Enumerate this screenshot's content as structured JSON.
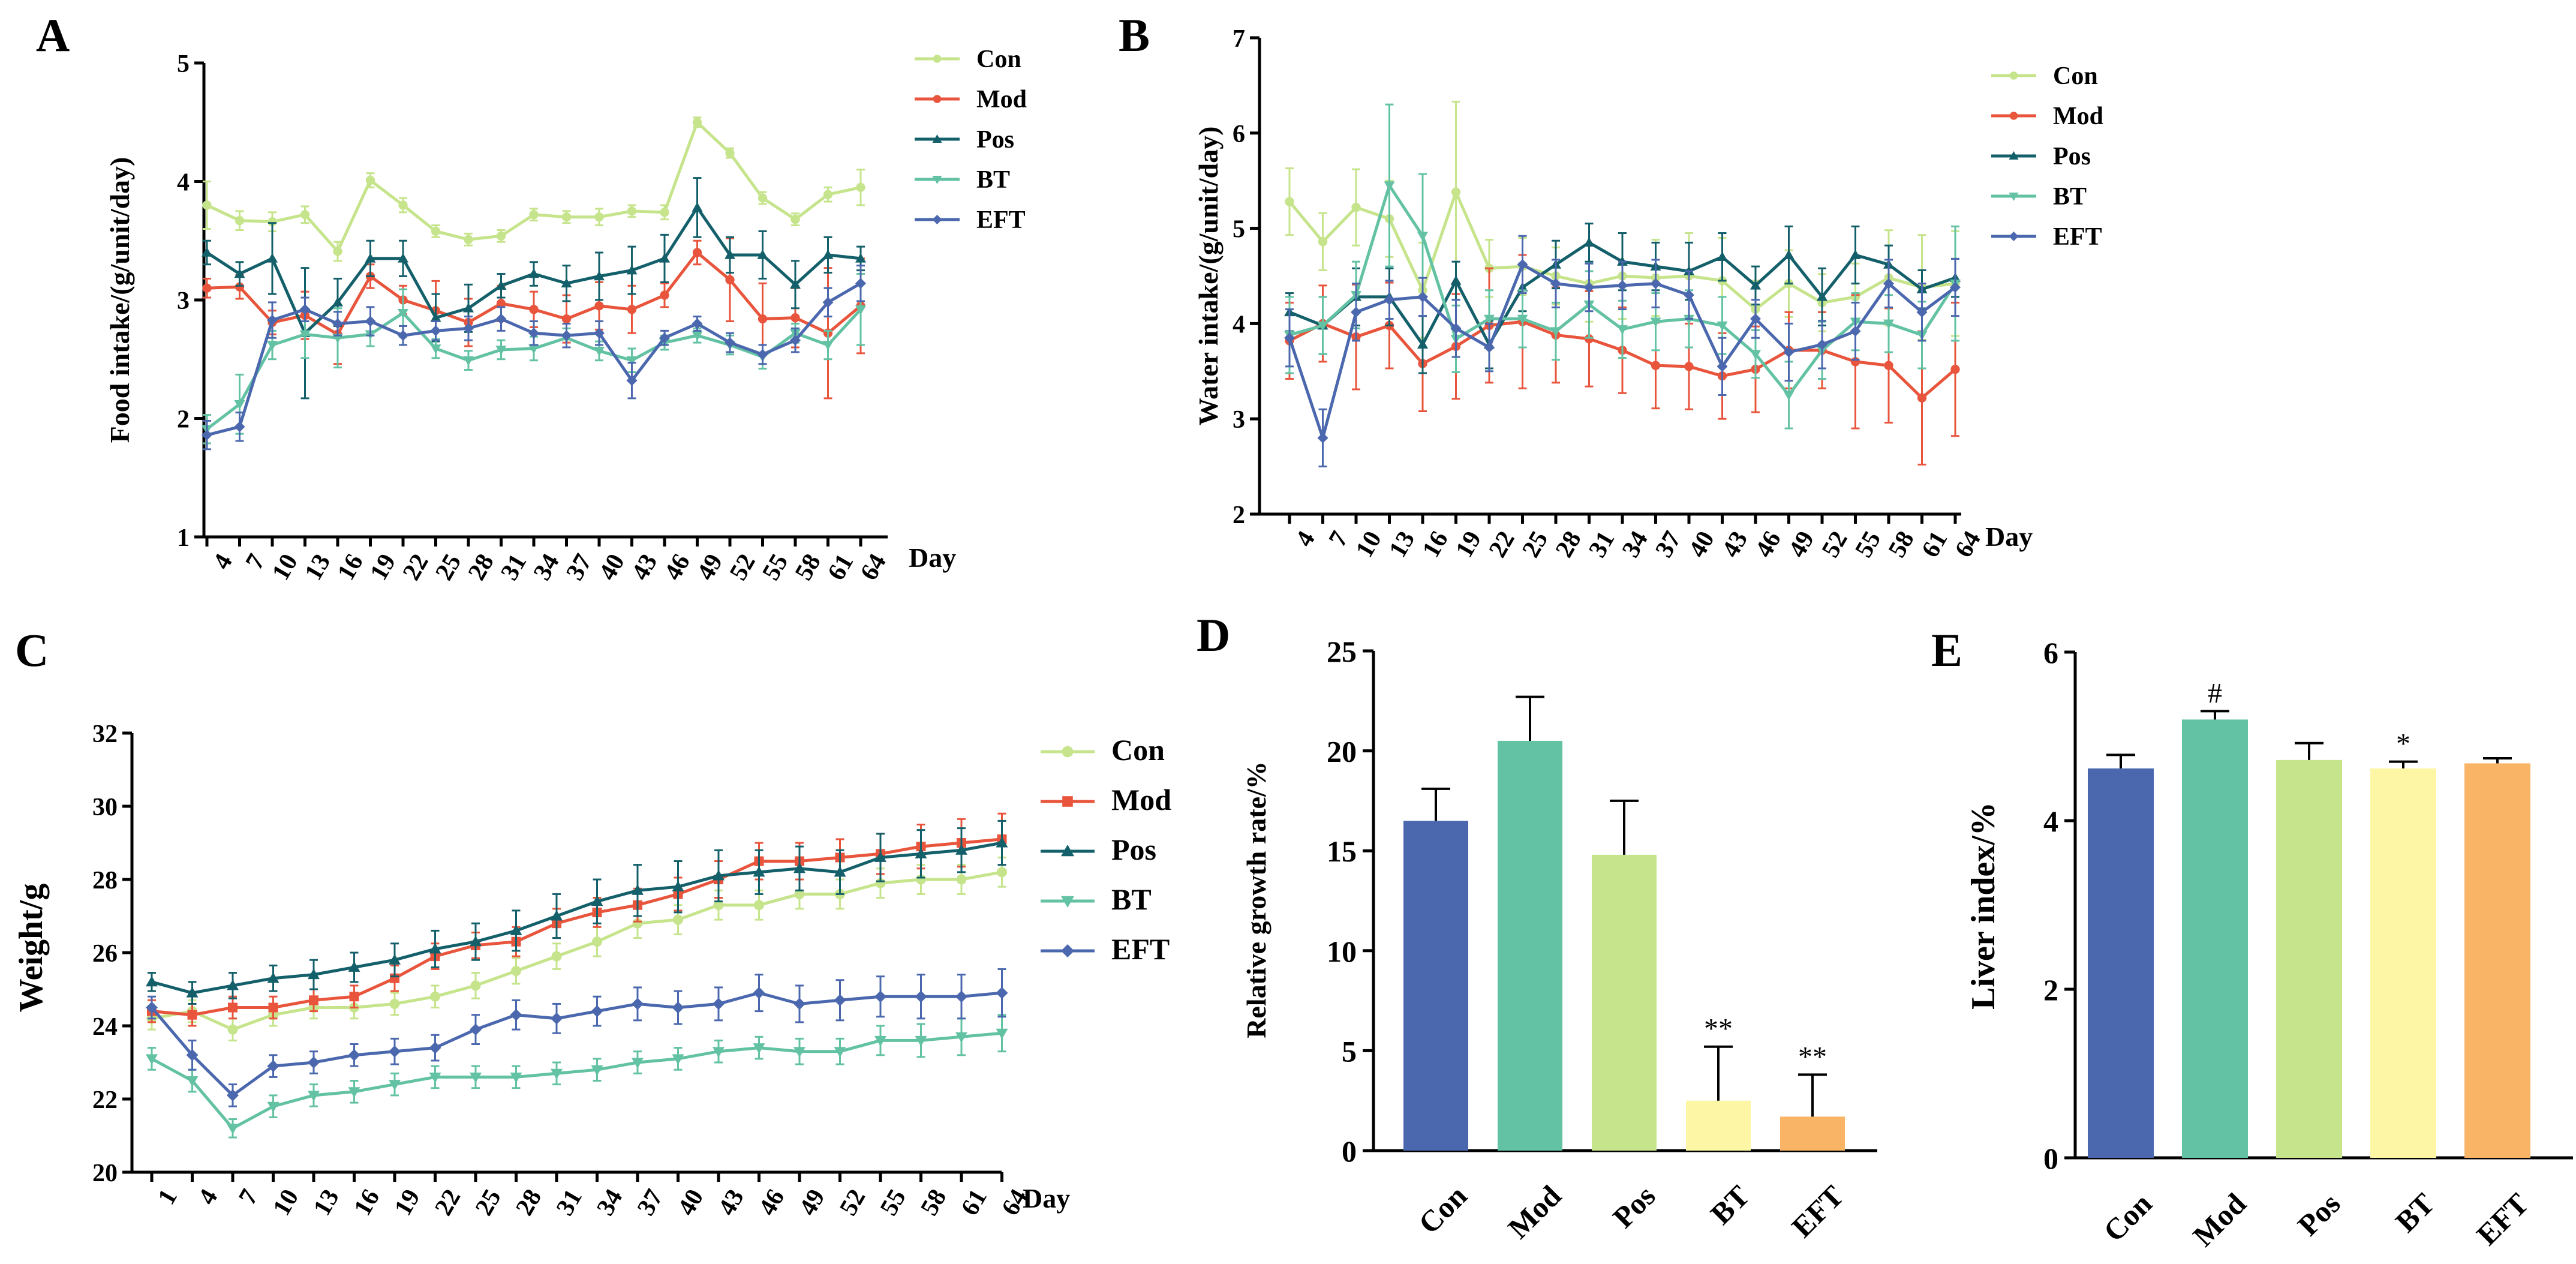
{
  "chart_data": [
    {
      "panel": "A",
      "type": "line",
      "ylabel": "Food intake/(g/unit/day)",
      "xlabel": "Day",
      "ylim": [
        1,
        5
      ],
      "yticks": [
        1,
        2,
        3,
        4,
        5
      ],
      "x": [
        4,
        7,
        10,
        13,
        16,
        19,
        22,
        25,
        28,
        31,
        34,
        37,
        40,
        43,
        46,
        49,
        52,
        55,
        58,
        61,
        64
      ],
      "legend_position": "top-right",
      "series": [
        {
          "name": "Con",
          "color": "#c6e48b",
          "marker": "circle",
          "values": [
            3.8,
            3.67,
            3.66,
            3.72,
            3.41,
            4.01,
            3.8,
            3.58,
            3.51,
            3.54,
            3.72,
            3.7,
            3.7,
            3.75,
            3.74,
            4.5,
            4.24,
            3.86,
            3.68,
            3.89,
            3.95
          ],
          "errors": [
            0.2,
            0.08,
            0.08,
            0.07,
            0.08,
            0.06,
            0.06,
            0.05,
            0.05,
            0.05,
            0.05,
            0.05,
            0.07,
            0.05,
            0.06,
            0.04,
            0.04,
            0.05,
            0.05,
            0.06,
            0.15
          ]
        },
        {
          "name": "Mod",
          "color": "#e8553c",
          "marker": "circle",
          "values": [
            3.1,
            3.11,
            2.81,
            2.87,
            2.71,
            3.2,
            3.0,
            2.91,
            2.81,
            2.97,
            2.92,
            2.84,
            2.95,
            2.92,
            3.04,
            3.4,
            3.17,
            2.84,
            2.85,
            2.72,
            2.95
          ],
          "errors": [
            0.08,
            0.1,
            0.1,
            0.2,
            0.25,
            0.1,
            0.12,
            0.25,
            0.2,
            0.15,
            0.15,
            0.2,
            0.2,
            0.2,
            0.1,
            0.1,
            0.35,
            0.3,
            0.25,
            0.55,
            0.4
          ]
        },
        {
          "name": "Pos",
          "color": "#135f6a",
          "marker": "triangle",
          "values": [
            3.4,
            3.22,
            3.35,
            2.72,
            2.98,
            3.35,
            3.35,
            2.85,
            2.93,
            3.12,
            3.22,
            3.14,
            3.2,
            3.25,
            3.35,
            3.78,
            3.38,
            3.38,
            3.13,
            3.38,
            3.35
          ],
          "errors": [
            0.1,
            0.1,
            0.3,
            0.55,
            0.2,
            0.15,
            0.15,
            0.2,
            0.2,
            0.1,
            0.1,
            0.15,
            0.2,
            0.2,
            0.2,
            0.25,
            0.15,
            0.2,
            0.2,
            0.15,
            0.1
          ]
        },
        {
          "name": "BT",
          "color": "#62c2a3",
          "marker": "invtriangle",
          "values": [
            1.91,
            2.12,
            2.62,
            2.71,
            2.68,
            2.71,
            2.89,
            2.59,
            2.49,
            2.58,
            2.59,
            2.68,
            2.57,
            2.49,
            2.64,
            2.7,
            2.62,
            2.52,
            2.72,
            2.62,
            2.92
          ],
          "errors": [
            0.12,
            0.25,
            0.12,
            0.2,
            0.25,
            0.1,
            0.2,
            0.08,
            0.08,
            0.08,
            0.1,
            0.08,
            0.08,
            0.1,
            0.06,
            0.06,
            0.08,
            0.1,
            0.08,
            0.12,
            0.3
          ]
        },
        {
          "name": "EFT",
          "color": "#4b68ae",
          "marker": "diamond",
          "values": [
            1.86,
            1.93,
            2.83,
            2.92,
            2.8,
            2.82,
            2.7,
            2.74,
            2.76,
            2.84,
            2.72,
            2.7,
            2.72,
            2.32,
            2.68,
            2.8,
            2.64,
            2.54,
            2.66,
            2.98,
            3.14
          ],
          "errors": [
            0.12,
            0.12,
            0.15,
            0.1,
            0.1,
            0.12,
            0.08,
            0.08,
            0.1,
            0.1,
            0.1,
            0.1,
            0.1,
            0.15,
            0.06,
            0.06,
            0.08,
            0.08,
            0.1,
            0.12,
            0.15
          ]
        }
      ]
    },
    {
      "panel": "B",
      "type": "line",
      "ylabel": "Water intake/(g/unit/day)",
      "xlabel": "Day",
      "ylim": [
        2,
        7
      ],
      "yticks": [
        2,
        3,
        4,
        5,
        6,
        7
      ],
      "x": [
        4,
        7,
        10,
        13,
        16,
        19,
        22,
        25,
        28,
        31,
        34,
        37,
        40,
        43,
        46,
        49,
        52,
        55,
        58,
        61,
        64
      ],
      "legend_position": "top-right",
      "series": [
        {
          "name": "Con",
          "color": "#c6e48b",
          "marker": "circle",
          "values": [
            5.28,
            4.86,
            5.22,
            5.1,
            4.35,
            5.38,
            4.58,
            4.6,
            4.5,
            4.42,
            4.5,
            4.48,
            4.5,
            4.45,
            4.15,
            4.42,
            4.22,
            4.28,
            4.48,
            4.38,
            4.42
          ],
          "errors": [
            0.35,
            0.3,
            0.4,
            0.4,
            0.5,
            0.95,
            0.3,
            0.3,
            0.3,
            0.4,
            0.45,
            0.4,
            0.45,
            0.45,
            0.3,
            0.35,
            0.3,
            0.35,
            0.5,
            0.55,
            0.55
          ]
        },
        {
          "name": "Mod",
          "color": "#e8553c",
          "marker": "circle",
          "values": [
            3.82,
            4.0,
            3.86,
            3.98,
            3.58,
            3.76,
            3.98,
            4.02,
            3.88,
            3.84,
            3.72,
            3.56,
            3.55,
            3.45,
            3.52,
            3.72,
            3.72,
            3.6,
            3.56,
            3.22,
            3.52
          ],
          "errors": [
            0.4,
            0.4,
            0.55,
            0.45,
            0.5,
            0.55,
            0.6,
            0.7,
            0.5,
            0.5,
            0.45,
            0.45,
            0.45,
            0.45,
            0.45,
            0.4,
            0.4,
            0.7,
            0.6,
            0.7,
            0.7
          ]
        },
        {
          "name": "Pos",
          "color": "#135f6a",
          "marker": "triangle",
          "values": [
            4.12,
            3.98,
            4.28,
            4.28,
            3.78,
            4.45,
            3.78,
            4.38,
            4.62,
            4.85,
            4.65,
            4.6,
            4.55,
            4.7,
            4.4,
            4.72,
            4.28,
            4.72,
            4.62,
            4.36,
            4.48
          ],
          "errors": [
            0.2,
            0.3,
            0.3,
            0.3,
            0.3,
            0.2,
            0.25,
            0.25,
            0.25,
            0.2,
            0.3,
            0.25,
            0.3,
            0.25,
            0.2,
            0.3,
            0.3,
            0.3,
            0.2,
            0.2,
            0.2
          ]
        },
        {
          "name": "BT",
          "color": "#62c2a3",
          "marker": "invtriangle",
          "values": [
            3.88,
            3.98,
            4.3,
            5.45,
            4.92,
            3.84,
            4.05,
            4.05,
            3.92,
            4.2,
            3.94,
            4.02,
            4.05,
            3.98,
            3.68,
            3.25,
            3.72,
            4.02,
            4.0,
            3.88,
            4.42
          ],
          "errors": [
            0.4,
            0.3,
            0.35,
            0.85,
            0.65,
            0.35,
            0.3,
            0.3,
            0.3,
            0.35,
            0.3,
            0.3,
            0.3,
            0.3,
            0.25,
            0.35,
            0.3,
            0.3,
            0.3,
            0.35,
            0.6
          ]
        },
        {
          "name": "EFT",
          "color": "#4b68ae",
          "marker": "diamond",
          "values": [
            3.85,
            2.8,
            4.12,
            4.25,
            4.28,
            3.95,
            3.75,
            4.62,
            4.42,
            4.38,
            4.4,
            4.42,
            4.3,
            3.55,
            4.05,
            3.7,
            3.78,
            3.92,
            4.42,
            4.12,
            4.38
          ],
          "errors": [
            0.3,
            0.3,
            0.3,
            0.2,
            0.2,
            0.3,
            0.25,
            0.3,
            0.25,
            0.25,
            0.25,
            0.25,
            0.25,
            0.3,
            0.2,
            0.3,
            0.25,
            0.3,
            0.25,
            0.3,
            0.3
          ]
        }
      ]
    },
    {
      "panel": "C",
      "type": "line",
      "ylabel": "Weight/g",
      "xlabel": "Day",
      "ylim": [
        20,
        32
      ],
      "yticks": [
        20,
        22,
        24,
        26,
        28,
        30,
        32
      ],
      "x": [
        1,
        4,
        7,
        10,
        13,
        16,
        19,
        22,
        25,
        28,
        31,
        34,
        37,
        40,
        43,
        46,
        49,
        52,
        55,
        58,
        61,
        64
      ],
      "legend_position": "top-right",
      "series": [
        {
          "name": "Con",
          "color": "#c6e48b",
          "marker": "circle",
          "values": [
            24.2,
            24.4,
            23.9,
            24.3,
            24.5,
            24.5,
            24.6,
            24.8,
            25.1,
            25.5,
            25.9,
            26.3,
            26.8,
            26.9,
            27.3,
            27.3,
            27.6,
            27.6,
            27.9,
            28.0,
            28.0,
            28.2
          ],
          "errors": [
            0.3,
            0.3,
            0.3,
            0.3,
            0.3,
            0.3,
            0.3,
            0.3,
            0.35,
            0.35,
            0.35,
            0.4,
            0.4,
            0.4,
            0.4,
            0.4,
            0.4,
            0.4,
            0.4,
            0.4,
            0.4,
            0.4
          ]
        },
        {
          "name": "Mod",
          "color": "#e8553c",
          "marker": "square",
          "values": [
            24.4,
            24.3,
            24.5,
            24.5,
            24.7,
            24.8,
            25.3,
            25.9,
            26.2,
            26.3,
            26.8,
            27.1,
            27.3,
            27.6,
            28.0,
            28.5,
            28.5,
            28.6,
            28.7,
            28.9,
            29.0,
            29.1
          ],
          "errors": [
            0.3,
            0.3,
            0.3,
            0.3,
            0.3,
            0.3,
            0.35,
            0.35,
            0.35,
            0.4,
            0.4,
            0.4,
            0.45,
            0.45,
            0.5,
            0.5,
            0.5,
            0.5,
            0.55,
            0.6,
            0.65,
            0.7
          ]
        },
        {
          "name": "Pos",
          "color": "#135f6a",
          "marker": "triangle",
          "values": [
            25.2,
            24.9,
            25.1,
            25.3,
            25.4,
            25.6,
            25.8,
            26.1,
            26.3,
            26.6,
            27.0,
            27.4,
            27.7,
            27.8,
            28.1,
            28.2,
            28.3,
            28.2,
            28.6,
            28.7,
            28.8,
            29.0
          ],
          "errors": [
            0.25,
            0.3,
            0.35,
            0.35,
            0.4,
            0.4,
            0.45,
            0.5,
            0.5,
            0.55,
            0.6,
            0.6,
            0.7,
            0.7,
            0.7,
            0.6,
            0.6,
            0.6,
            0.65,
            0.65,
            0.6,
            0.6
          ]
        },
        {
          "name": "BT",
          "color": "#62c2a3",
          "marker": "invtriangle",
          "values": [
            23.1,
            22.5,
            21.2,
            21.8,
            22.1,
            22.2,
            22.4,
            22.6,
            22.6,
            22.6,
            22.7,
            22.8,
            23.0,
            23.1,
            23.3,
            23.4,
            23.3,
            23.3,
            23.6,
            23.6,
            23.7,
            23.8
          ],
          "errors": [
            0.3,
            0.3,
            0.25,
            0.3,
            0.3,
            0.3,
            0.3,
            0.3,
            0.3,
            0.3,
            0.3,
            0.3,
            0.3,
            0.3,
            0.3,
            0.3,
            0.35,
            0.35,
            0.4,
            0.45,
            0.5,
            0.5
          ]
        },
        {
          "name": "EFT",
          "color": "#4b68ae",
          "marker": "diamond",
          "values": [
            24.5,
            23.2,
            22.1,
            22.9,
            23.0,
            23.2,
            23.3,
            23.4,
            23.9,
            24.3,
            24.2,
            24.4,
            24.6,
            24.5,
            24.6,
            24.9,
            24.6,
            24.7,
            24.8,
            24.8,
            24.8,
            24.9
          ],
          "errors": [
            0.3,
            0.4,
            0.3,
            0.3,
            0.3,
            0.3,
            0.35,
            0.35,
            0.4,
            0.4,
            0.4,
            0.4,
            0.45,
            0.45,
            0.45,
            0.5,
            0.5,
            0.55,
            0.55,
            0.6,
            0.6,
            0.65
          ]
        }
      ]
    },
    {
      "panel": "D",
      "type": "bar",
      "ylabel": "Relative growth rate/%",
      "categories": [
        "Con",
        "Mod",
        "Pos",
        "BT",
        "EFT"
      ],
      "values": [
        16.5,
        20.5,
        14.8,
        2.5,
        1.7
      ],
      "errors": [
        1.6,
        2.2,
        2.7,
        2.7,
        2.1
      ],
      "colors": [
        "#4b68ae",
        "#62c2a3",
        "#c6e48b",
        "#fdf6a5",
        "#f9b466"
      ],
      "annotations": [
        "",
        "",
        "",
        "**",
        "**"
      ],
      "ylim": [
        0,
        25
      ],
      "yticks": [
        0,
        5,
        10,
        15,
        20,
        25
      ]
    },
    {
      "panel": "E",
      "type": "bar",
      "ylabel": "Liver index/%",
      "categories": [
        "Con",
        "Mod",
        "Pos",
        "BT",
        "EFT"
      ],
      "values": [
        4.62,
        5.2,
        4.72,
        4.62,
        4.68
      ],
      "errors": [
        0.16,
        0.1,
        0.2,
        0.08,
        0.06
      ],
      "colors": [
        "#4b68ae",
        "#62c2a3",
        "#c6e48b",
        "#fdf6a5",
        "#f9b466"
      ],
      "annotations": [
        "",
        "#",
        "",
        "*",
        ""
      ],
      "ylim": [
        0,
        6
      ],
      "yticks": [
        0,
        2,
        4,
        6
      ]
    }
  ]
}
